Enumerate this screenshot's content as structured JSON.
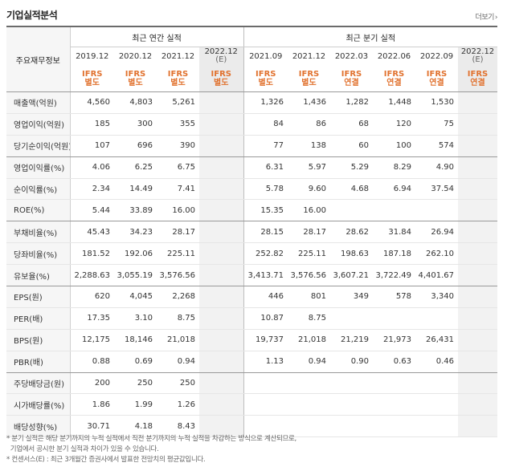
{
  "title": "기업실적분석",
  "more_label": "더보기",
  "more_arrow": "›",
  "header": {
    "row_label": "주요재무정보",
    "annual_group": "최근 연간 실적",
    "quarter_group": "최근 분기 실적",
    "periods": [
      {
        "top": "2019.12",
        "sub": "",
        "ifrs": "IFRS",
        "basis": "별도",
        "estimate": false
      },
      {
        "top": "2020.12",
        "sub": "",
        "ifrs": "IFRS",
        "basis": "별도",
        "estimate": false
      },
      {
        "top": "2021.12",
        "sub": "",
        "ifrs": "IFRS",
        "basis": "별도",
        "estimate": false
      },
      {
        "top": "2022.12",
        "sub": "(E)",
        "ifrs": "IFRS",
        "basis": "별도",
        "estimate": true
      },
      {
        "top": "2021.09",
        "sub": "",
        "ifrs": "IFRS",
        "basis": "별도",
        "estimate": false
      },
      {
        "top": "2021.12",
        "sub": "",
        "ifrs": "IFRS",
        "basis": "별도",
        "estimate": false
      },
      {
        "top": "2022.03",
        "sub": "",
        "ifrs": "IFRS",
        "basis": "연결",
        "estimate": false
      },
      {
        "top": "2022.06",
        "sub": "",
        "ifrs": "IFRS",
        "basis": "연결",
        "estimate": false
      },
      {
        "top": "2022.09",
        "sub": "",
        "ifrs": "IFRS",
        "basis": "연결",
        "estimate": false
      },
      {
        "top": "2022.12",
        "sub": "(E)",
        "ifrs": "IFRS",
        "basis": "연결",
        "estimate": true
      }
    ]
  },
  "rows": [
    {
      "label": "매출액(억원)",
      "values": [
        "4,560",
        "4,803",
        "5,261",
        "",
        "1,326",
        "1,436",
        "1,282",
        "1,448",
        "1,530",
        ""
      ]
    },
    {
      "label": "영업이익(억원)",
      "values": [
        "185",
        "300",
        "355",
        "",
        "84",
        "86",
        "68",
        "120",
        "75",
        ""
      ]
    },
    {
      "label": "당기순이익(억원)",
      "values": [
        "107",
        "696",
        "390",
        "",
        "77",
        "138",
        "60",
        "100",
        "574",
        ""
      ]
    },
    {
      "label": "영업이익률(%)",
      "values": [
        "4.06",
        "6.25",
        "6.75",
        "",
        "6.31",
        "5.97",
        "5.29",
        "8.29",
        "4.90",
        ""
      ]
    },
    {
      "label": "순이익률(%)",
      "values": [
        "2.34",
        "14.49",
        "7.41",
        "",
        "5.78",
        "9.60",
        "4.68",
        "6.94",
        "37.54",
        ""
      ]
    },
    {
      "label": "ROE(%)",
      "values": [
        "5.44",
        "33.89",
        "16.00",
        "",
        "15.35",
        "16.00",
        "",
        "",
        "",
        ""
      ]
    },
    {
      "label": "부채비율(%)",
      "values": [
        "45.43",
        "34.23",
        "28.17",
        "",
        "28.15",
        "28.17",
        "28.62",
        "31.84",
        "26.94",
        ""
      ]
    },
    {
      "label": "당좌비율(%)",
      "values": [
        "181.52",
        "192.06",
        "225.11",
        "",
        "252.82",
        "225.11",
        "198.63",
        "187.18",
        "262.10",
        ""
      ]
    },
    {
      "label": "유보율(%)",
      "values": [
        "2,288.63",
        "3,055.19",
        "3,576.56",
        "",
        "3,413.71",
        "3,576.56",
        "3,607.21",
        "3,722.49",
        "4,401.67",
        ""
      ]
    },
    {
      "label": "EPS(원)",
      "values": [
        "620",
        "4,045",
        "2,268",
        "",
        "446",
        "801",
        "349",
        "578",
        "3,340",
        ""
      ]
    },
    {
      "label": "PER(배)",
      "values": [
        "17.35",
        "3.10",
        "8.75",
        "",
        "10.87",
        "8.75",
        "",
        "",
        "",
        ""
      ]
    },
    {
      "label": "BPS(원)",
      "values": [
        "12,175",
        "18,146",
        "21,018",
        "",
        "19,737",
        "21,018",
        "21,219",
        "21,973",
        "26,431",
        ""
      ]
    },
    {
      "label": "PBR(배)",
      "values": [
        "0.88",
        "0.69",
        "0.94",
        "",
        "1.13",
        "0.94",
        "0.90",
        "0.63",
        "0.46",
        ""
      ]
    },
    {
      "label": "주당배당금(원)",
      "values": [
        "200",
        "250",
        "250",
        "",
        "",
        "",
        "",
        "",
        "",
        ""
      ]
    },
    {
      "label": "시가배당률(%)",
      "values": [
        "1.86",
        "1.99",
        "1.26",
        "",
        "",
        "",
        "",
        "",
        "",
        ""
      ]
    },
    {
      "label": "배당성향(%)",
      "values": [
        "30.71",
        "4.18",
        "8.43",
        "",
        "",
        "",
        "",
        "",
        "",
        ""
      ]
    }
  ],
  "notes": [
    "* 분기 실적은 해당 분기까지의 누적 실적에서 직전 분기까지의 누적 실적을 차감하는 방식으로 계산되므로,",
    "  기업에서 공시한 분기 실적과 차이가 있을 수 있습니다.",
    "* 컨센서스(E) : 최근 3개월간 증권사에서 발표한 전망치의 평균값입니다."
  ]
}
